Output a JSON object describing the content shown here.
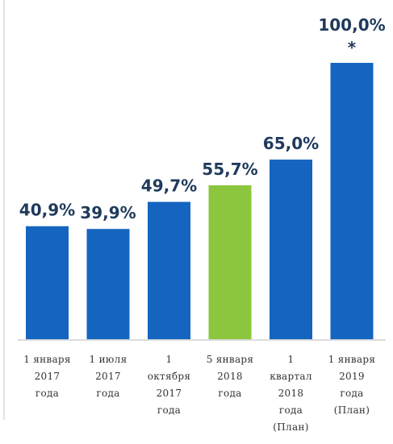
{
  "chart_data": {
    "type": "bar",
    "title": "",
    "xlabel": "",
    "ylabel": "",
    "ylim": [
      0,
      100
    ],
    "categories": [
      [
        "1 января",
        "2017",
        "года"
      ],
      [
        "1 июля",
        "2017",
        "года"
      ],
      [
        "1",
        "октября",
        "2017",
        "года"
      ],
      [
        "5 января",
        "2018",
        "года"
      ],
      [
        "1",
        "квартал",
        "2018",
        "года",
        "(План)"
      ],
      [
        "1 января",
        "2019",
        "года",
        "(План)"
      ]
    ],
    "values": [
      40.9,
      39.9,
      49.7,
      55.7,
      65.0,
      100.0
    ],
    "value_labels": [
      "40,9%",
      "39,9%",
      "49,7%",
      "55,7%",
      "65,0%",
      "100,0%"
    ],
    "footnote_marks": [
      "",
      "",
      "",
      "",
      "",
      "*"
    ],
    "bar_colors": [
      "#1565c0",
      "#1565c0",
      "#1565c0",
      "#8cc63f",
      "#1565c0",
      "#1565c0"
    ],
    "label_color": "#1f3a5c",
    "axis_color": "#d0d0d0",
    "grid": false,
    "legend": "none"
  }
}
